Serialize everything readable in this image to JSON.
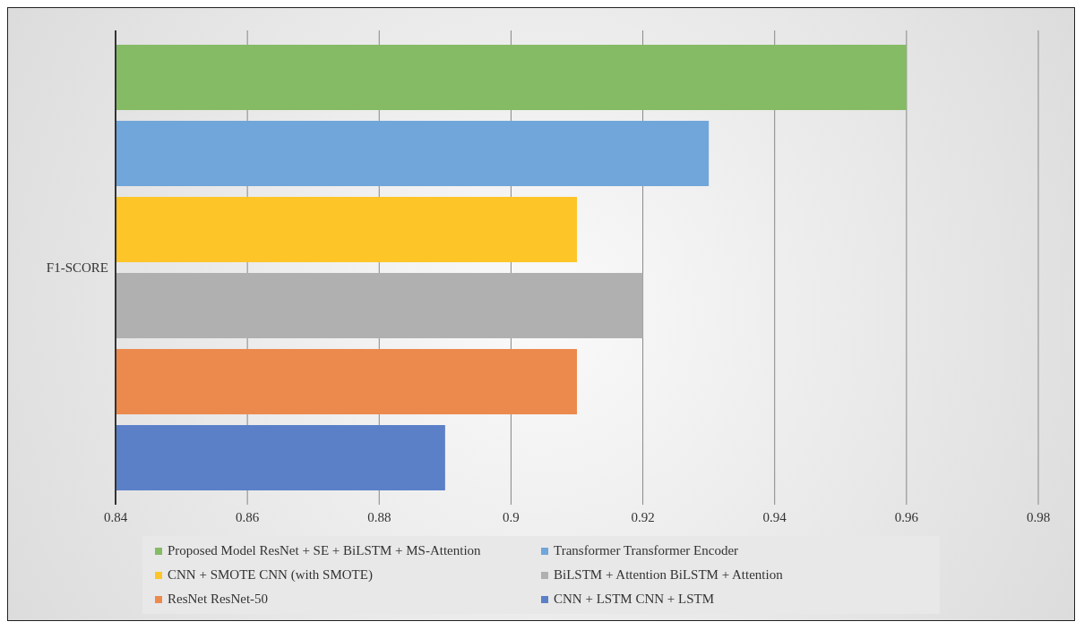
{
  "chart_data": {
    "type": "bar",
    "orientation": "horizontal",
    "categories": [
      "F1-SCORE"
    ],
    "series": [
      {
        "name": "Proposed Model ResNet + SE + BiLSTM + MS-Attention",
        "color": "#85bb65",
        "values": [
          0.96
        ]
      },
      {
        "name": "Transformer Transformer Encoder",
        "color": "#70a6da",
        "values": [
          0.93
        ]
      },
      {
        "name": "CNN + SMOTE CNN (with SMOTE)",
        "color": "#fdc527",
        "values": [
          0.91
        ]
      },
      {
        "name": "BiLSTM + Attention BiLSTM + Attention",
        "color": "#b0b0b0",
        "values": [
          0.92
        ]
      },
      {
        "name": "ResNet ResNet-50",
        "color": "#ec8a4d",
        "values": [
          0.91
        ]
      },
      {
        "name": "CNN + LSTM CNN + LSTM",
        "color": "#5b80c8",
        "values": [
          0.89
        ]
      }
    ],
    "xlim": [
      0.84,
      0.98
    ],
    "xticks": [
      0.84,
      0.86,
      0.88,
      0.9,
      0.92,
      0.94,
      0.96,
      0.98
    ],
    "grid": "x",
    "legend": "bottom"
  }
}
